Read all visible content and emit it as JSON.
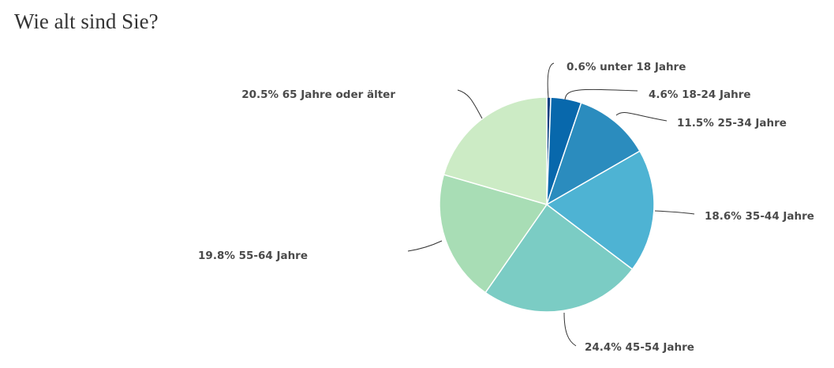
{
  "chart_data": {
    "type": "pie",
    "title": "Wie alt sind Sie?",
    "slices": [
      {
        "label": "unter 18 Jahre",
        "value": 0.6,
        "text": "0.6% unter 18 Jahre",
        "color": "#084081"
      },
      {
        "label": "18-24 Jahre",
        "value": 4.6,
        "text": "4.6% 18-24 Jahre",
        "color": "#0868ac"
      },
      {
        "label": "25-34 Jahre",
        "value": 11.5,
        "text": "11.5% 25-34 Jahre",
        "color": "#2b8cbe"
      },
      {
        "label": "35-44 Jahre",
        "value": 18.6,
        "text": "18.6% 35-44 Jahre",
        "color": "#4eb3d3"
      },
      {
        "label": "45-54 Jahre",
        "value": 24.4,
        "text": "24.4% 45-54 Jahre",
        "color": "#7bccc4"
      },
      {
        "label": "55-64 Jahre",
        "value": 19.8,
        "text": "19.8% 55-64 Jahre",
        "color": "#a8ddb5"
      },
      {
        "label": "65 Jahre oder älter",
        "value": 20.5,
        "text": "20.5% 65 Jahre oder älter",
        "color": "#ccebc5"
      }
    ],
    "unit": "%"
  }
}
